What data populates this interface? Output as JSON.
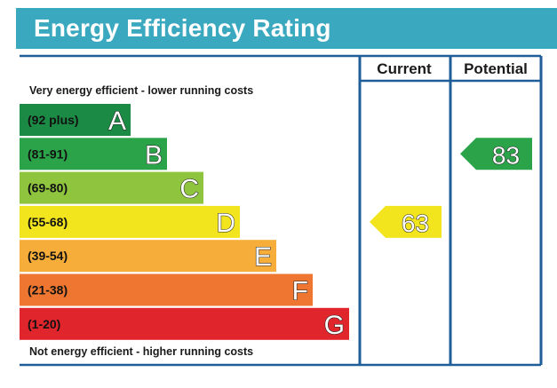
{
  "title": "Energy Efficiency Rating",
  "chart_data": {
    "type": "bar",
    "columns": [
      "Current",
      "Potential"
    ],
    "top_caption": "Very energy efficient - lower running costs",
    "bottom_caption": "Not energy efficient - higher running costs",
    "bands": [
      {
        "range": "(92 plus)",
        "letter": "A",
        "color": "#1b8a44"
      },
      {
        "range": "(81-91)",
        "letter": "B",
        "color": "#2aa349"
      },
      {
        "range": "(69-80)",
        "letter": "C",
        "color": "#8fc43f"
      },
      {
        "range": "(55-68)",
        "letter": "D",
        "color": "#f2e51e"
      },
      {
        "range": "(39-54)",
        "letter": "E",
        "color": "#f6ad3a"
      },
      {
        "range": "(21-38)",
        "letter": "F",
        "color": "#ee7630"
      },
      {
        "range": "(1-20)",
        "letter": "G",
        "color": "#e1252d"
      }
    ],
    "current": {
      "value": 63,
      "band": "D",
      "color": "#f2e51e"
    },
    "potential": {
      "value": 83,
      "band": "B",
      "color": "#2aa349"
    },
    "border_color": "#1f5e98"
  }
}
